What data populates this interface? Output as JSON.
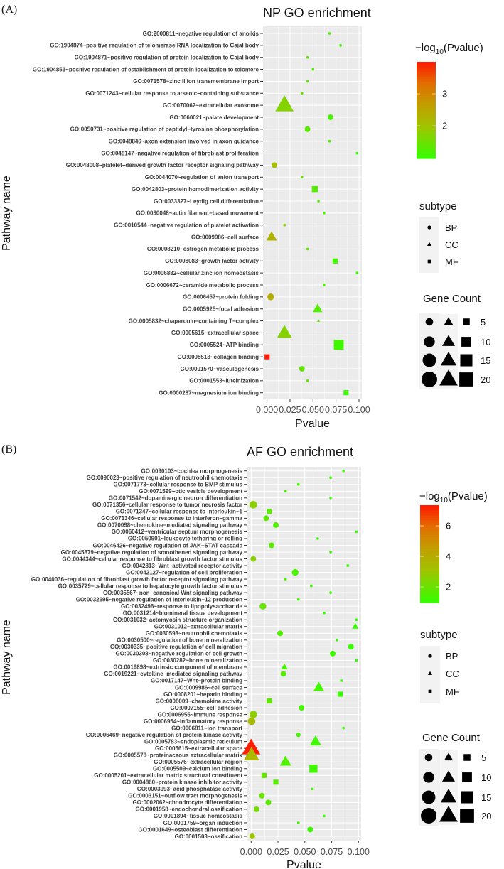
{
  "chart_data": [
    {
      "panel_label": "(A)",
      "type": "scatter",
      "title": "NP GO enrichment",
      "xlabel": "Pvalue",
      "ylabel": "Pathway name",
      "xlim": [
        0,
        0.1
      ],
      "xticks": [
        "0.000",
        "0.025",
        "0.050",
        "0.075",
        "0.100"
      ],
      "xtick_values": [
        0,
        0.025,
        0.05,
        0.075,
        0.1
      ],
      "grid": true,
      "color_legend": {
        "title_main": "−log",
        "title_sub": "10",
        "title_tail": "(Pvalue)",
        "range": [
          0.98,
          4.0
        ],
        "ticks": [
          "2",
          "3"
        ],
        "tick_values": [
          2,
          3
        ],
        "low_color": "#33ff00",
        "high_color": "#ff1a00"
      },
      "shape_legend": {
        "title": "subtype",
        "items": [
          "BP",
          "CC",
          "MF"
        ]
      },
      "size_legend": {
        "title": "Gene Count",
        "items": [
          "5",
          "10",
          "15",
          "20"
        ],
        "values": [
          5,
          10,
          15,
          20
        ]
      },
      "legend_position": "right",
      "rows": [
        {
          "term": "GO:2000811~negative regulation of anoikis",
          "pvalue": 0.068,
          "count": 1,
          "subtype": "BP"
        },
        {
          "term": "GO:1904874~positive regulation of telomerase RNA localization to Cajal body",
          "pvalue": 0.08,
          "count": 1,
          "subtype": "BP"
        },
        {
          "term": "GO:1904871~positive regulation of protein localization to Cajal body",
          "pvalue": 0.044,
          "count": 1,
          "subtype": "BP"
        },
        {
          "term": "GO:1904851~positive regulation of establishment of protein localization to telomere",
          "pvalue": 0.05,
          "count": 1,
          "subtype": "BP"
        },
        {
          "term": "GO:0071578~zinc II ion transmembrane import",
          "pvalue": 0.044,
          "count": 1,
          "subtype": "BP"
        },
        {
          "term": "GO:0071243~cellular response to arsenic−containing substance",
          "pvalue": 0.038,
          "count": 1,
          "subtype": "BP"
        },
        {
          "term": "GO:0070062~extracellular exosome",
          "pvalue": 0.019,
          "count": 20,
          "subtype": "CC"
        },
        {
          "term": "GO:0060021~palate development",
          "pvalue": 0.069,
          "count": 3,
          "subtype": "BP"
        },
        {
          "term": "GO:0050731~positive regulation of peptidyl−tyrosine phosphorylation",
          "pvalue": 0.044,
          "count": 3,
          "subtype": "BP"
        },
        {
          "term": "GO:0048846~axon extension involved in axon guidance",
          "pvalue": 0.068,
          "count": 1,
          "subtype": "BP"
        },
        {
          "term": "GO:0048147~negative regulation of fibroblast proliferation",
          "pvalue": 0.098,
          "count": 1,
          "subtype": "BP"
        },
        {
          "term": "GO:0048008~platelet−derived growth factor receptor signaling pathway",
          "pvalue": 0.008,
          "count": 3,
          "subtype": "BP"
        },
        {
          "term": "GO:0044070~regulation of anion transport",
          "pvalue": 0.038,
          "count": 1,
          "subtype": "BP"
        },
        {
          "term": "GO:0042803~protein homodimerization activity",
          "pvalue": 0.052,
          "count": 4,
          "subtype": "MF"
        },
        {
          "term": "GO:0033327~Leydig cell differentiation",
          "pvalue": 0.056,
          "count": 1,
          "subtype": "BP"
        },
        {
          "term": "GO:0030048~actin filament−based movement",
          "pvalue": 0.062,
          "count": 1,
          "subtype": "BP"
        },
        {
          "term": "GO:0010544~negative regulation of platelet activation",
          "pvalue": 0.019,
          "count": 1,
          "subtype": "BP"
        },
        {
          "term": "GO:0009986~cell surface",
          "pvalue": 0.005,
          "count": 7,
          "subtype": "CC"
        },
        {
          "term": "GO:0008210~estrogen metabolic process",
          "pvalue": 0.044,
          "count": 1,
          "subtype": "BP"
        },
        {
          "term": "GO:0008083~growth factor activity",
          "pvalue": 0.074,
          "count": 3,
          "subtype": "MF"
        },
        {
          "term": "GO:0006882~cellular zinc ion homeostasis",
          "pvalue": 0.098,
          "count": 1,
          "subtype": "BP"
        },
        {
          "term": "GO:0006672~ceramide metabolic process",
          "pvalue": 0.062,
          "count": 1,
          "subtype": "BP"
        },
        {
          "term": "GO:0006457~protein folding",
          "pvalue": 0.004,
          "count": 4,
          "subtype": "BP"
        },
        {
          "term": "GO:0005925~focal adhesion",
          "pvalue": 0.055,
          "count": 6,
          "subtype": "CC"
        },
        {
          "term": "GO:0005832~chaperonin−containing T−complex",
          "pvalue": 0.056,
          "count": 1,
          "subtype": "CC"
        },
        {
          "term": "GO:0005615~extracellular space",
          "pvalue": 0.019,
          "count": 13,
          "subtype": "CC"
        },
        {
          "term": "GO:0005524~ATP binding",
          "pvalue": 0.078,
          "count": 10,
          "subtype": "MF"
        },
        {
          "term": "GO:0005518~collagen binding",
          "pvalue": 0.0001,
          "count": 3,
          "subtype": "MF"
        },
        {
          "term": "GO:0001570~vasculogenesis",
          "pvalue": 0.038,
          "count": 3,
          "subtype": "BP"
        },
        {
          "term": "GO:0001553~luteinization",
          "pvalue": 0.044,
          "count": 1,
          "subtype": "BP"
        },
        {
          "term": "GO:0000287~magnesium ion binding",
          "pvalue": 0.086,
          "count": 3,
          "subtype": "MF"
        }
      ]
    },
    {
      "panel_label": "(B)",
      "type": "scatter",
      "title": "AF GO enrichment",
      "xlabel": "Pvalue",
      "ylabel": "Pathway name",
      "xlim": [
        0,
        0.1
      ],
      "xticks": [
        "0.000",
        "0.025",
        "0.050",
        "0.075",
        "0.100"
      ],
      "xtick_values": [
        0,
        0.025,
        0.05,
        0.075,
        0.1
      ],
      "grid": true,
      "color_legend": {
        "title_main": "−log",
        "title_sub": "10",
        "title_tail": "(Pvalue)",
        "range": [
          0.98,
          7.35
        ],
        "ticks": [
          "2",
          "4",
          "6"
        ],
        "tick_values": [
          2,
          4,
          6
        ],
        "low_color": "#33ff00",
        "high_color": "#ff1a00"
      },
      "shape_legend": {
        "title": "subtype",
        "items": [
          "BP",
          "CC",
          "MF"
        ]
      },
      "size_legend": {
        "title": "Gene Count",
        "items": [
          "5",
          "10",
          "15",
          "20"
        ],
        "values": [
          5,
          10,
          15,
          20
        ]
      },
      "legend_position": "right",
      "rows": [
        {
          "term": "GO:0090103~cochlea morphogenesis",
          "pvalue": 0.086,
          "count": 1,
          "subtype": "BP"
        },
        {
          "term": "GO:0090023~positive regulation of neutrophil chemotaxis",
          "pvalue": 0.074,
          "count": 1,
          "subtype": "BP"
        },
        {
          "term": "GO:0071773~cellular response to BMP stimulus",
          "pvalue": 0.044,
          "count": 1,
          "subtype": "BP"
        },
        {
          "term": "GO:0071599~otic vesicle development",
          "pvalue": 0.032,
          "count": 1,
          "subtype": "BP"
        },
        {
          "term": "GO:0071542~dopaminergic neuron differentiation",
          "pvalue": 0.074,
          "count": 1,
          "subtype": "BP"
        },
        {
          "term": "GO:0071356~cellular response to tumor necrosis factor",
          "pvalue": 0.002,
          "count": 5,
          "subtype": "BP"
        },
        {
          "term": "GO:0071347~cellular response to interleukin−1",
          "pvalue": 0.017,
          "count": 3,
          "subtype": "BP"
        },
        {
          "term": "GO:0071346~cellular response to interferon−gamma",
          "pvalue": 0.014,
          "count": 3,
          "subtype": "BP"
        },
        {
          "term": "GO:0070098~chemokine−mediated signaling pathway",
          "pvalue": 0.023,
          "count": 3,
          "subtype": "BP"
        },
        {
          "term": "GO:0060412~ventricular septum morphogenesis",
          "pvalue": 0.098,
          "count": 1,
          "subtype": "BP"
        },
        {
          "term": "GO:0050901~leukocyte tethering or rolling",
          "pvalue": 0.062,
          "count": 1,
          "subtype": "BP"
        },
        {
          "term": "GO:0046426~negative regulation of JAK−STAT cascade",
          "pvalue": 0.019,
          "count": 3,
          "subtype": "BP"
        },
        {
          "term": "GO:0045879~negative regulation of smoothened signaling pathway",
          "pvalue": 0.074,
          "count": 1,
          "subtype": "BP"
        },
        {
          "term": "GO:0044344~cellular response to fibroblast growth factor stimulus",
          "pvalue": 0.002,
          "count": 3,
          "subtype": "BP"
        },
        {
          "term": "GO:0042813~Wnt−activated receptor activity",
          "pvalue": 0.09,
          "count": 1,
          "subtype": "MF"
        },
        {
          "term": "GO:0042127~regulation of cell proliferation",
          "pvalue": 0.041,
          "count": 4,
          "subtype": "BP"
        },
        {
          "term": "GO:0040036~regulation of fibroblast growth factor receptor signaling pathway",
          "pvalue": 0.032,
          "count": 1,
          "subtype": "BP"
        },
        {
          "term": "GO:0035729~cellular response to hepatocyte growth factor stimulus",
          "pvalue": 0.056,
          "count": 1,
          "subtype": "BP"
        },
        {
          "term": "GO:0035567~non−canonical Wnt signaling pathway",
          "pvalue": 0.074,
          "count": 1,
          "subtype": "BP"
        },
        {
          "term": "GO:0032695~negative regulation of interleukin−12 production",
          "pvalue": 0.044,
          "count": 1,
          "subtype": "BP"
        },
        {
          "term": "GO:0032496~response to lipopolysaccharide",
          "pvalue": 0.011,
          "count": 4,
          "subtype": "BP"
        },
        {
          "term": "GO:0031214~biomineral tissue development",
          "pvalue": 0.068,
          "count": 1,
          "subtype": "BP"
        },
        {
          "term": "GO:0031032~actomyosin structure organization",
          "pvalue": 0.098,
          "count": 1,
          "subtype": "BP"
        },
        {
          "term": "GO:0031012~extracellular matrix",
          "pvalue": 0.097,
          "count": 3,
          "subtype": "CC"
        },
        {
          "term": "GO:0030593~neutrophil chemotaxis",
          "pvalue": 0.027,
          "count": 3,
          "subtype": "BP"
        },
        {
          "term": "GO:0030500~regulation of bone mineralization",
          "pvalue": 0.08,
          "count": 1,
          "subtype": "BP"
        },
        {
          "term": "GO:0030335~positive regulation of cell migration",
          "pvalue": 0.093,
          "count": 3,
          "subtype": "BP"
        },
        {
          "term": "GO:0030308~negative regulation of cell growth",
          "pvalue": 0.076,
          "count": 3,
          "subtype": "BP"
        },
        {
          "term": "GO:0030282~bone mineralization",
          "pvalue": 0.098,
          "count": 1,
          "subtype": "BP"
        },
        {
          "term": "GO:0019898~extrinsic component of membrane",
          "pvalue": 0.031,
          "count": 3,
          "subtype": "CC"
        },
        {
          "term": "GO:0019221~cytokine−mediated signaling pathway",
          "pvalue": 0.03,
          "count": 3,
          "subtype": "BP"
        },
        {
          "term": "GO:0017147~Wnt−protein binding",
          "pvalue": 0.084,
          "count": 1,
          "subtype": "MF"
        },
        {
          "term": "GO:0009986~cell surface",
          "pvalue": 0.063,
          "count": 7,
          "subtype": "CC"
        },
        {
          "term": "GO:0008201~heparin binding",
          "pvalue": 0.083,
          "count": 3,
          "subtype": "MF"
        },
        {
          "term": "GO:0008009~chemokine activity",
          "pvalue": 0.017,
          "count": 3,
          "subtype": "MF"
        },
        {
          "term": "GO:0007155~cell adhesion",
          "pvalue": 0.047,
          "count": 3,
          "subtype": "BP"
        },
        {
          "term": "GO:0006955~immune response",
          "pvalue": 0.002,
          "count": 5,
          "subtype": "BP"
        },
        {
          "term": "GO:0006954~inflammatory response",
          "pvalue": 0.0004,
          "count": 5,
          "subtype": "BP"
        },
        {
          "term": "GO:0006811~ion transport",
          "pvalue": 0.086,
          "count": 1,
          "subtype": "BP"
        },
        {
          "term": "GO:0006469~negative regulation of protein kinase activity",
          "pvalue": 0.044,
          "count": 2,
          "subtype": "BP"
        },
        {
          "term": "GO:0005783~endoplasmic reticulum",
          "pvalue": 0.06,
          "count": 8,
          "subtype": "CC"
        },
        {
          "term": "GO:0005615~extracellular space",
          "pvalue": 5e-08,
          "count": 20,
          "subtype": "CC"
        },
        {
          "term": "GO:0005578~proteinaceous extracellular matrix",
          "pvalue": 0.0003,
          "count": 14,
          "subtype": "CC"
        },
        {
          "term": "GO:0005576~extracellular region",
          "pvalue": 0.032,
          "count": 8,
          "subtype": "CC"
        },
        {
          "term": "GO:0005509~calcium ion binding",
          "pvalue": 0.058,
          "count": 7,
          "subtype": "MF"
        },
        {
          "term": "GO:0005201~extracellular matrix structural constituent",
          "pvalue": 0.012,
          "count": 3,
          "subtype": "MF"
        },
        {
          "term": "GO:0004860~protein kinase inhibitor activity",
          "pvalue": 0.023,
          "count": 3,
          "subtype": "MF"
        },
        {
          "term": "GO:0003993~acid phosphatase activity",
          "pvalue": 0.057,
          "count": 1,
          "subtype": "MF"
        },
        {
          "term": "GO:0003151~outflow tract morphogenesis",
          "pvalue": 0.01,
          "count": 3,
          "subtype": "BP"
        },
        {
          "term": "GO:0002062~chondrocyte differentiation",
          "pvalue": 0.016,
          "count": 3,
          "subtype": "BP"
        },
        {
          "term": "GO:0001958~endochondral ossification",
          "pvalue": 0.005,
          "count": 3,
          "subtype": "BP"
        },
        {
          "term": "GO:0001894~tissue homeostasis",
          "pvalue": 0.068,
          "count": 1,
          "subtype": "BP"
        },
        {
          "term": "GO:0001759~organ induction",
          "pvalue": 0.044,
          "count": 1,
          "subtype": "BP"
        },
        {
          "term": "GO:0001649~osteoblast differentiation",
          "pvalue": 0.055,
          "count": 3,
          "subtype": "BP"
        },
        {
          "term": "GO:0001503~ossification",
          "pvalue": 0.001,
          "count": 3,
          "subtype": "BP"
        }
      ]
    }
  ]
}
